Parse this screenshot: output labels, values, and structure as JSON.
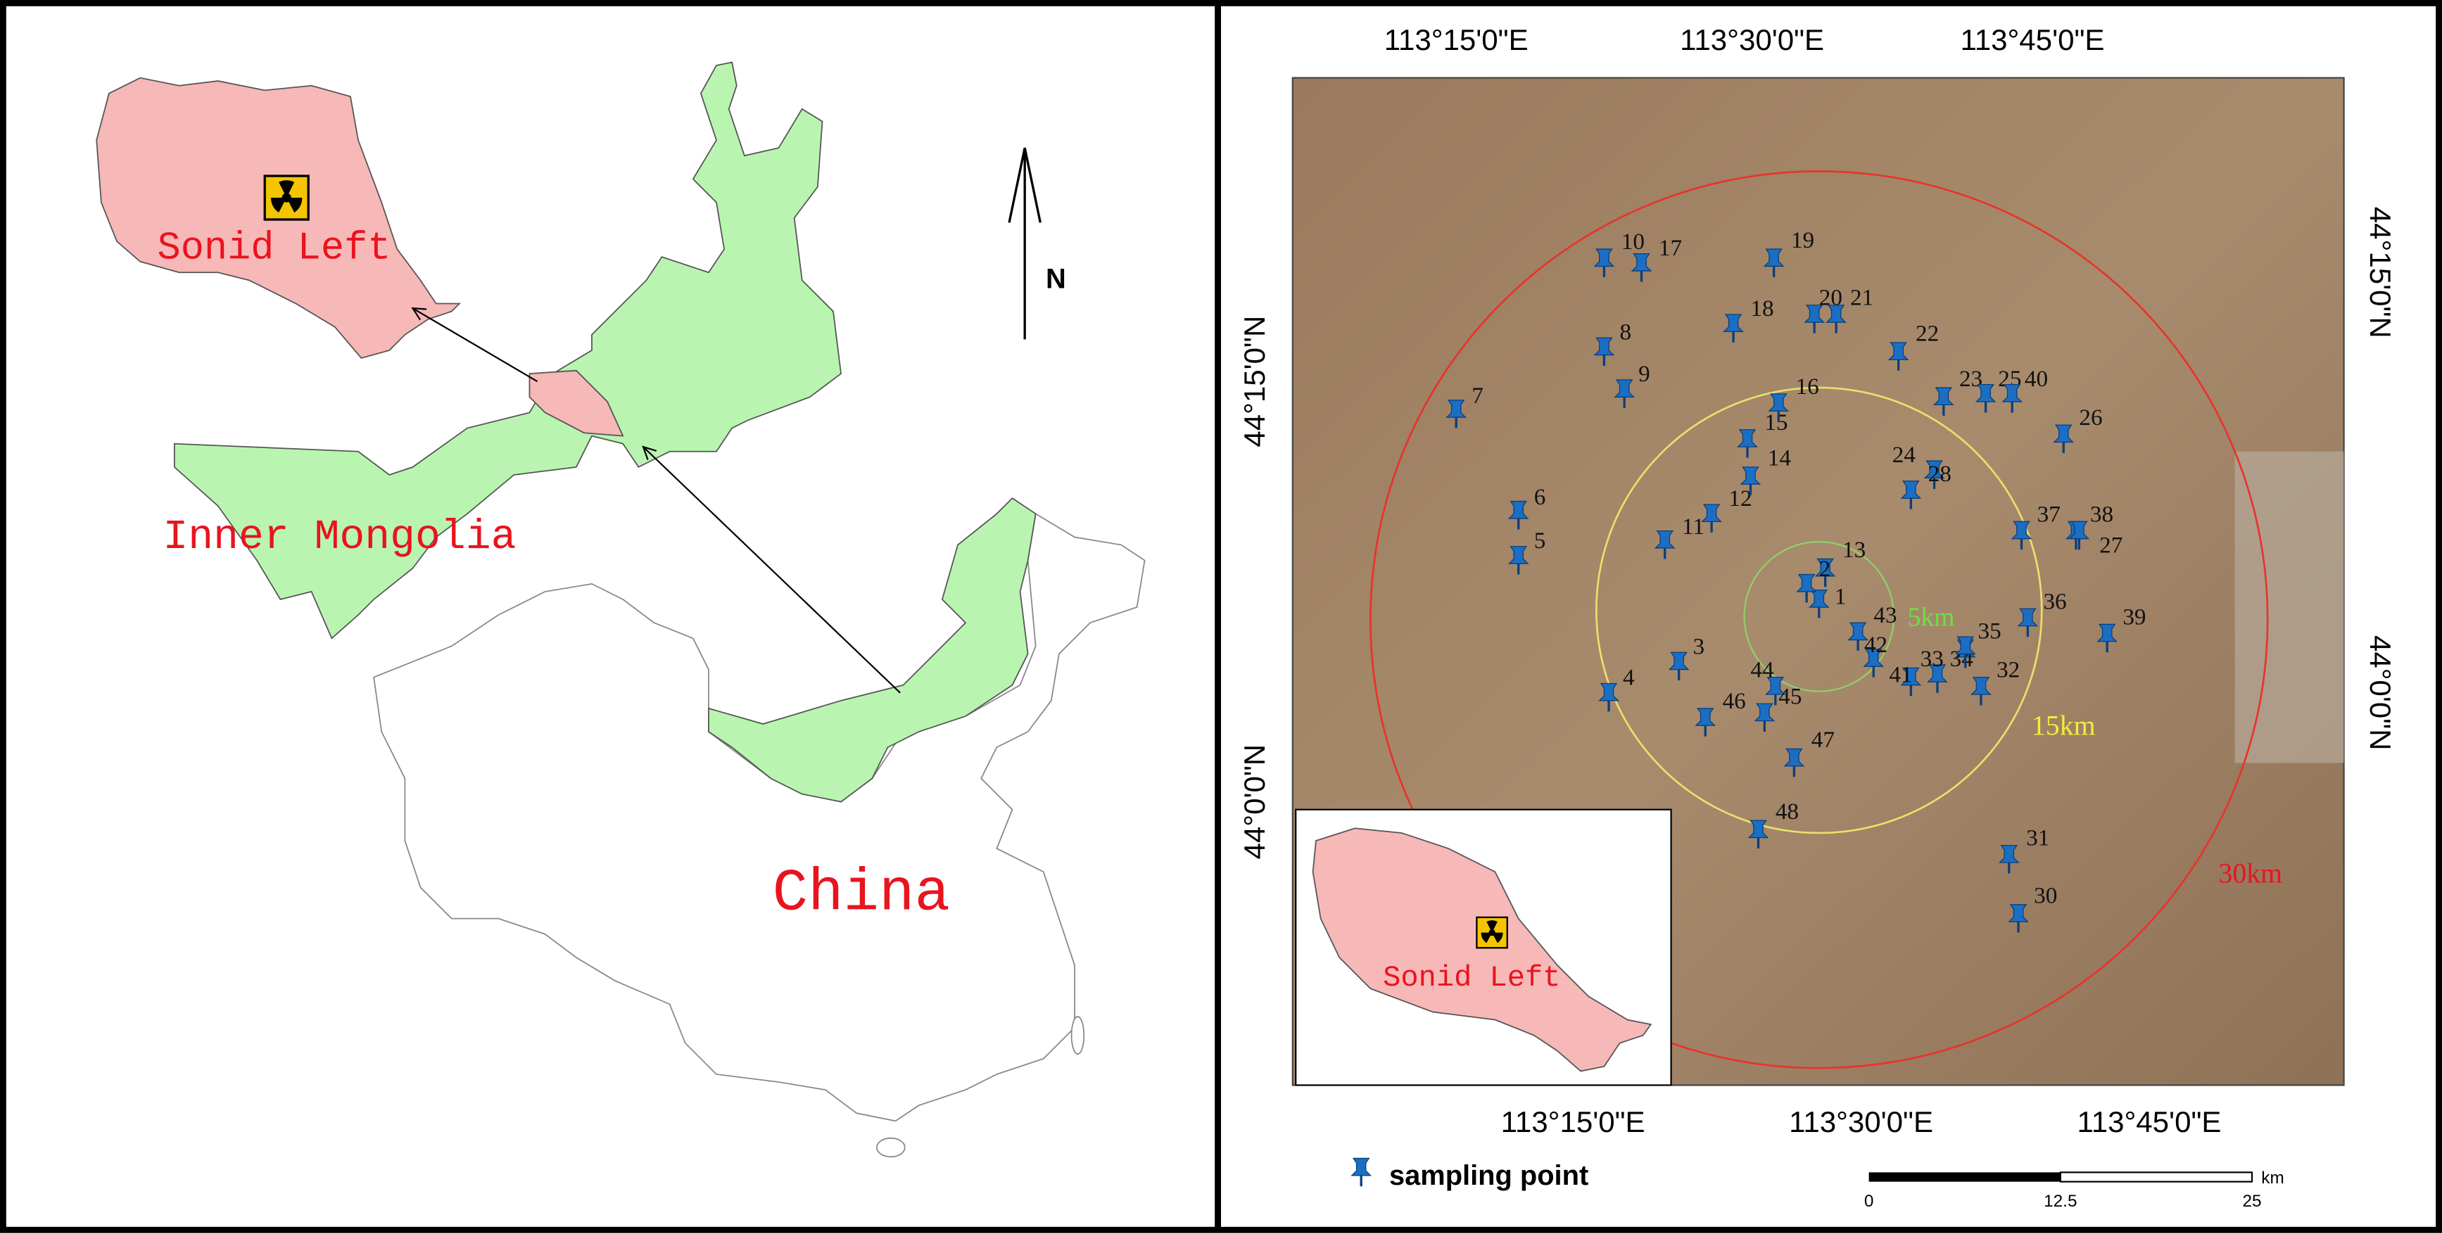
{
  "left_panel": {
    "inset_label": "Sonid Left",
    "region_label": "Inner Mongolia",
    "country_label": "China",
    "north_label": "N"
  },
  "right_panel": {
    "top_longitudes": [
      "113°15'0\"E",
      "113°30'0\"E",
      "113°45'0\"E"
    ],
    "bottom_longitudes": [
      "113°15'0\"E",
      "113°30'0\"E",
      "113°45'0\"E"
    ],
    "left_latitudes": [
      "44°15'0\"N",
      "44°0'0\"N"
    ],
    "right_latitudes": [
      "44°15'0\"N",
      "44°0'0\"N"
    ],
    "ring_labels": [
      "5km",
      "15km",
      "30km"
    ],
    "sampling_points": [
      "1",
      "2",
      "3",
      "4",
      "5",
      "6",
      "7",
      "8",
      "9",
      "10",
      "11",
      "12",
      "13",
      "14",
      "15",
      "16",
      "17",
      "18",
      "19",
      "20",
      "21",
      "22",
      "23",
      "24",
      "25",
      "26",
      "27",
      "28",
      "30",
      "31",
      "32",
      "33",
      "34",
      "35",
      "36",
      "37",
      "38",
      "39",
      "40",
      "41",
      "42",
      "43",
      "44",
      "45",
      "46",
      "47",
      "48"
    ],
    "inset_label": "Sonid Left",
    "legend_label": "sampling point",
    "scale_labels": [
      "0",
      "12.5",
      "25"
    ],
    "scale_unit": "km"
  }
}
